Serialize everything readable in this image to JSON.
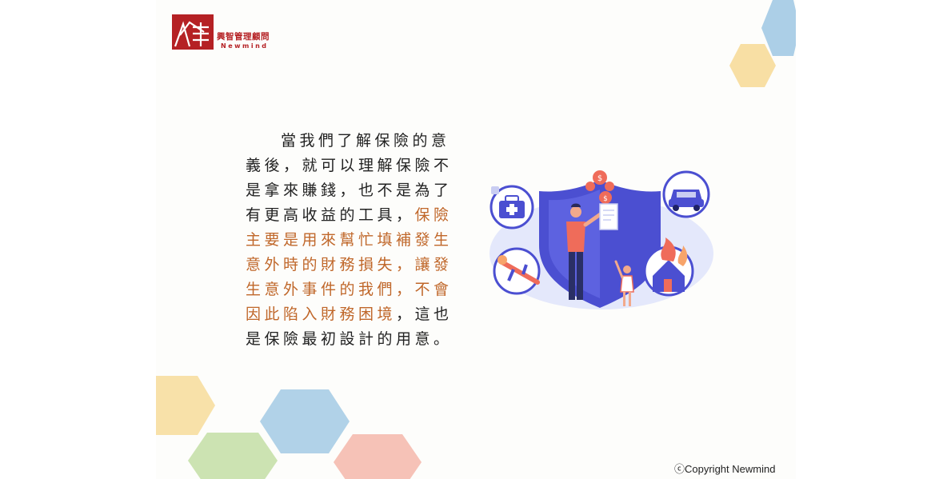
{
  "logo": {
    "company_cn": "興智管理顧問",
    "company_en": "Newmind"
  },
  "body_text": {
    "part1": "當我們了解保險的意義後，就可以理解保險不是拿來賺錢，也不是為了有更高收益的工具，",
    "highlight": "保險主要是用來幫忙填補發生意外時的財務損失，讓發生意外事件的我們，不會因此陷入財務困境",
    "part2": "，這也是保險最初設計的用意。"
  },
  "illustration": {
    "icons": [
      "medical-kit-icon",
      "car-icon",
      "coins-icon",
      "plane-crash-icon",
      "house-fire-icon",
      "shield-icon"
    ]
  },
  "copyright": "ⓒCopyright Newmind",
  "colors": {
    "brand_red": "#b52124",
    "highlight_orange": "#c0672a",
    "hex_blue": "#9ec7e3",
    "hex_yellow": "#f7dc9a",
    "hex_green": "#c3dea4",
    "hex_pink": "#f4b7aa",
    "shield_blue": "#4b4fd1"
  }
}
